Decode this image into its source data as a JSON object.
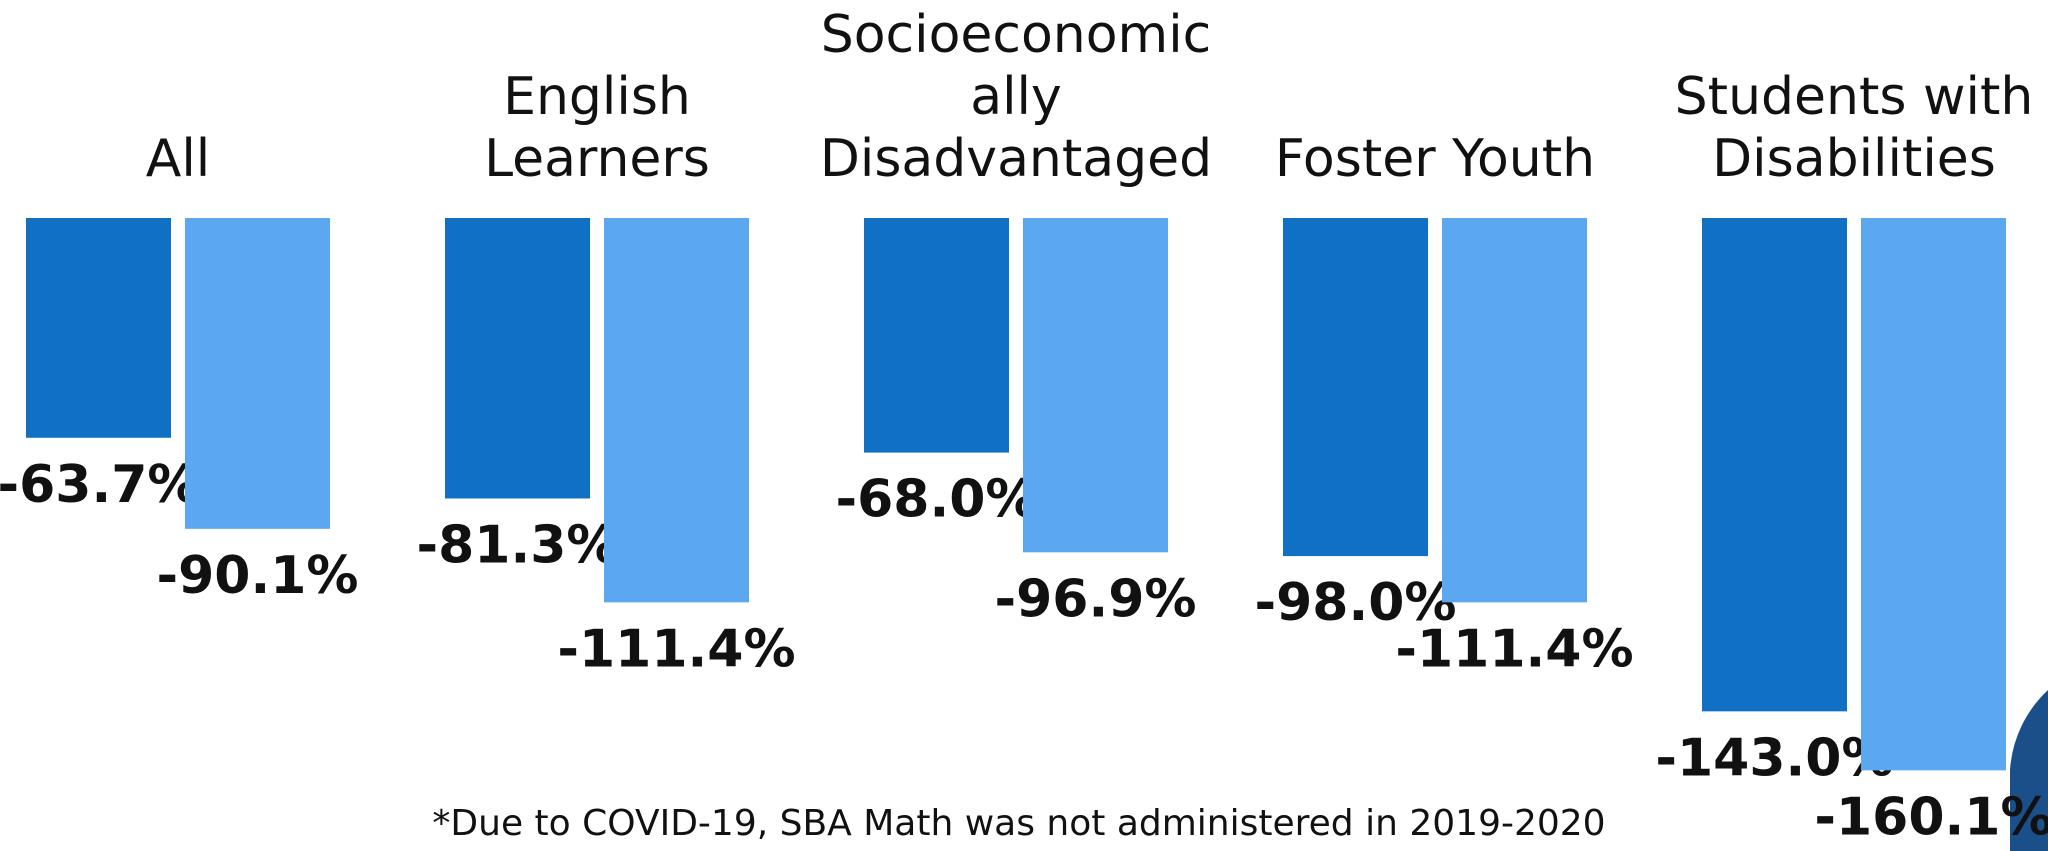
{
  "chart_data": {
    "type": "bar",
    "categories": [
      "All",
      "English Learners",
      "Socioeconomically Disadvantaged",
      "Foster Youth",
      "Students with Disabilities"
    ],
    "series": [
      {
        "color": "#1070c4",
        "values": [
          -63.7,
          -81.3,
          -68.0,
          -98.0,
          -143.0
        ],
        "value_labels": [
          "-63.7%",
          "-81.3%",
          "-68.0%",
          "-98.0%",
          "-143.0%"
        ]
      },
      {
        "color": "#5ba8f0",
        "values": [
          -90.1,
          -111.4,
          -96.9,
          -111.4,
          -160.1
        ],
        "value_labels": [
          "-90.1%",
          "-111.4%",
          "-96.9%",
          "-111.4%",
          "-160.1%"
        ]
      }
    ],
    "footnote": "*Due to COVID-19, SBA Math was not administered in 2019-2020"
  }
}
